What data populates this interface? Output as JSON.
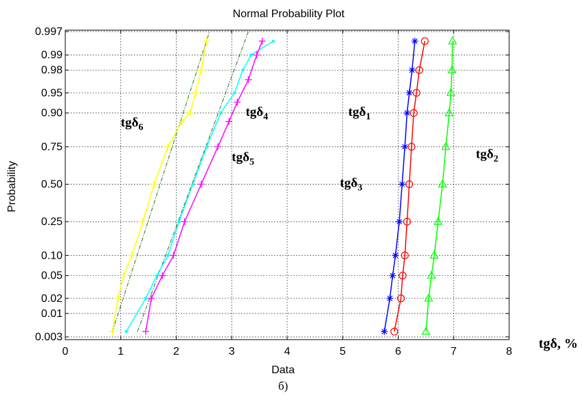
{
  "chart_data": {
    "type": "scatter",
    "title": "Normal Probability Plot",
    "xlabel": "Data",
    "ylabel": "Probability",
    "xlim": [
      0,
      8
    ],
    "y_scale": "normal-probability",
    "ylim": [
      0.003,
      0.997
    ],
    "grid": true,
    "x_ticks": [
      0,
      1,
      2,
      3,
      4,
      5,
      6,
      7,
      8
    ],
    "y_ticks": [
      0.003,
      0.01,
      0.02,
      0.05,
      0.1,
      0.25,
      0.5,
      0.75,
      0.9,
      0.95,
      0.98,
      0.99,
      0.997
    ],
    "y_tick_labels": [
      "0.003",
      "0.01",
      "0.02",
      "0.05",
      "0.10",
      "0.25",
      "0.50",
      "0.75",
      "0.90",
      "0.95",
      "0.98",
      "0.99",
      "0.997"
    ],
    "series": [
      {
        "name": "tgδ6",
        "color": "#ffff00",
        "marker": "+",
        "points": [
          [
            0.85,
            0.004
          ],
          [
            0.95,
            0.02
          ],
          [
            1.05,
            0.05
          ],
          [
            1.2,
            0.1
          ],
          [
            1.4,
            0.25
          ],
          [
            1.6,
            0.5
          ],
          [
            1.85,
            0.75
          ],
          [
            2.1,
            0.87
          ],
          [
            2.25,
            0.9
          ],
          [
            2.35,
            0.95
          ],
          [
            2.45,
            0.98
          ],
          [
            2.55,
            0.995
          ]
        ],
        "fit": [
          [
            0.85,
            0.004
          ],
          [
            2.6,
            0.997
          ]
        ]
      },
      {
        "name": "tgδ4",
        "color": "#00ffff",
        "marker": "dot",
        "points": [
          [
            1.1,
            0.004
          ],
          [
            1.45,
            0.02
          ],
          [
            1.65,
            0.05
          ],
          [
            1.85,
            0.1
          ],
          [
            2.05,
            0.25
          ],
          [
            2.3,
            0.5
          ],
          [
            2.55,
            0.75
          ],
          [
            2.8,
            0.9
          ],
          [
            3.05,
            0.95
          ],
          [
            3.2,
            0.98
          ],
          [
            3.35,
            0.99
          ],
          [
            3.75,
            0.995
          ]
        ],
        "fit": [
          [
            1.3,
            0.004
          ],
          [
            3.3,
            0.997
          ]
        ]
      },
      {
        "name": "tgδ5",
        "color": "#ff00ff",
        "marker": "+",
        "points": [
          [
            1.45,
            0.004
          ],
          [
            1.55,
            0.02
          ],
          [
            1.75,
            0.05
          ],
          [
            1.95,
            0.1
          ],
          [
            2.15,
            0.25
          ],
          [
            2.45,
            0.5
          ],
          [
            2.75,
            0.75
          ],
          [
            2.95,
            0.87
          ],
          [
            3.1,
            0.93
          ],
          [
            3.3,
            0.97
          ],
          [
            3.45,
            0.99
          ],
          [
            3.55,
            0.995
          ]
        ]
      },
      {
        "name": "tgδ1",
        "color": "#0000ff",
        "marker": "*",
        "points": [
          [
            5.75,
            0.004
          ],
          [
            5.85,
            0.02
          ],
          [
            5.9,
            0.05
          ],
          [
            5.95,
            0.1
          ],
          [
            6.02,
            0.25
          ],
          [
            6.07,
            0.5
          ],
          [
            6.12,
            0.75
          ],
          [
            6.16,
            0.9
          ],
          [
            6.2,
            0.95
          ],
          [
            6.25,
            0.98
          ],
          [
            6.3,
            0.995
          ]
        ]
      },
      {
        "name": "tgδ3",
        "color": "#ff0000",
        "marker": "o",
        "points": [
          [
            5.93,
            0.004
          ],
          [
            6.05,
            0.02
          ],
          [
            6.08,
            0.05
          ],
          [
            6.12,
            0.1
          ],
          [
            6.16,
            0.25
          ],
          [
            6.2,
            0.5
          ],
          [
            6.24,
            0.75
          ],
          [
            6.28,
            0.9
          ],
          [
            6.33,
            0.95
          ],
          [
            6.38,
            0.98
          ],
          [
            6.48,
            0.995
          ]
        ]
      },
      {
        "name": "tgδ2",
        "color": "#00ff00",
        "marker": "triangle",
        "points": [
          [
            6.5,
            0.004
          ],
          [
            6.55,
            0.02
          ],
          [
            6.6,
            0.05
          ],
          [
            6.65,
            0.1
          ],
          [
            6.72,
            0.25
          ],
          [
            6.8,
            0.5
          ],
          [
            6.86,
            0.75
          ],
          [
            6.92,
            0.9
          ],
          [
            6.95,
            0.95
          ],
          [
            6.97,
            0.98
          ],
          [
            6.98,
            0.995
          ]
        ]
      }
    ],
    "annotations": [
      {
        "base": "tgδ",
        "sub": "6",
        "x": 1.0,
        "p": 0.85
      },
      {
        "base": "tgδ",
        "sub": "4",
        "x": 3.25,
        "p": 0.89
      },
      {
        "base": "tgδ",
        "sub": "5",
        "x": 3.0,
        "p": 0.66
      },
      {
        "base": "tgδ",
        "sub": "1",
        "x": 5.1,
        "p": 0.89
      },
      {
        "base": "tgδ",
        "sub": "3",
        "x": 4.95,
        "p": 0.48
      },
      {
        "base": "tgδ",
        "sub": "2",
        "x": 7.4,
        "p": 0.68
      }
    ],
    "unit_label": "tgδ, %",
    "caption": "б)"
  }
}
